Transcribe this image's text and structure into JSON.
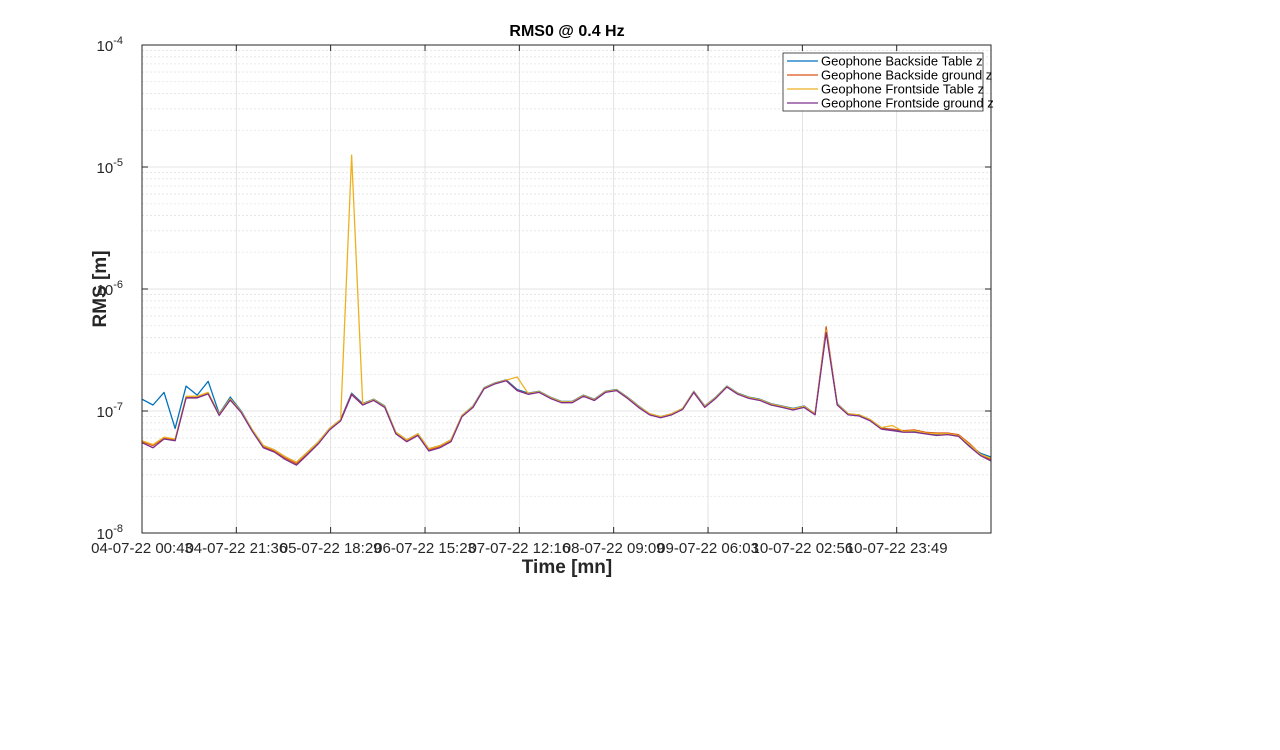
{
  "chart_data": {
    "type": "line",
    "title": "RMS0 @ 0.4 Hz",
    "xlabel": "Time [mn]",
    "ylabel": "RMS [m]",
    "yscale": "log",
    "ylim": [
      1e-08,
      0.0001
    ],
    "ytick_values": [
      1e-08,
      1e-07,
      1e-06,
      1e-05,
      0.0001
    ],
    "ytick_labels": [
      {
        "base": "10",
        "exp": "-8"
      },
      {
        "base": "10",
        "exp": "-7"
      },
      {
        "base": "10",
        "exp": "-6"
      },
      {
        "base": "10",
        "exp": "-5"
      },
      {
        "base": "10",
        "exp": "-4"
      }
    ],
    "xlim": [
      "04-07-22 00:43",
      "11-07-22 20:42"
    ],
    "xtick_values": [
      "04-07-22 00:43",
      "04-07-22 21:36",
      "05-07-22 18:29",
      "06-07-22 15:23",
      "07-07-22 12:16",
      "08-07-22 09:09",
      "09-07-22 06:03",
      "10-07-22 02:56",
      "10-07-22 23:49"
    ],
    "xtick_labels": [
      "04-07-22 00:43",
      "04-07-22 21:36",
      "05-07-22 18:29",
      "06-07-22 15:23",
      "07-07-22 12:16",
      "08-07-22 09:09",
      "09-07-22 06:03",
      "10-07-22 02:56",
      "10-07-22 23:49"
    ],
    "grid": true,
    "minor_grid_y": true,
    "legend_position": "top-right",
    "x": [
      "04-07-22 00:43",
      "04-07-22 03:09",
      "04-07-22 05:36",
      "04-07-22 08:03",
      "04-07-22 10:29",
      "04-07-22 12:56",
      "04-07-22 15:22",
      "04-07-22 17:49",
      "04-07-22 20:16",
      "04-07-22 22:42",
      "05-07-22 01:09",
      "05-07-22 03:35",
      "05-07-22 06:02",
      "05-07-22 08:29",
      "05-07-22 10:55",
      "05-07-22 13:22",
      "05-07-22 15:48",
      "05-07-22 18:15",
      "05-07-22 20:42",
      "05-07-22 23:08",
      "06-07-22 01:35",
      "06-07-22 04:01",
      "06-07-22 06:28",
      "06-07-22 08:55",
      "06-07-22 11:21",
      "06-07-22 13:48",
      "06-07-22 16:14",
      "06-07-22 18:41",
      "06-07-22 21:08",
      "06-07-22 23:34",
      "07-07-22 02:01",
      "07-07-22 04:27",
      "07-07-22 06:54",
      "07-07-22 09:21",
      "07-07-22 11:47",
      "07-07-22 14:14",
      "07-07-22 16:40",
      "07-07-22 19:07",
      "07-07-22 21:34",
      "08-07-22 00:00",
      "08-07-22 02:27",
      "08-07-22 04:53",
      "08-07-22 07:20",
      "08-07-22 09:47",
      "08-07-22 12:13",
      "08-07-22 14:40",
      "08-07-22 17:06",
      "08-07-22 19:33",
      "08-07-22 22:00",
      "09-07-22 00:26",
      "09-07-22 02:53",
      "09-07-22 05:19",
      "09-07-22 07:46",
      "09-07-22 10:13",
      "09-07-22 12:39",
      "09-07-22 15:06",
      "09-07-22 17:32",
      "09-07-22 19:59",
      "09-07-22 22:26",
      "10-07-22 00:52",
      "10-07-22 03:19",
      "10-07-22 05:45",
      "10-07-22 08:12",
      "10-07-22 10:39",
      "10-07-22 13:05",
      "10-07-22 15:32",
      "10-07-22 17:58",
      "10-07-22 20:25",
      "10-07-22 22:52",
      "11-07-22 01:18",
      "11-07-22 03:45",
      "11-07-22 06:11",
      "11-07-22 08:38",
      "11-07-22 11:05",
      "11-07-22 13:31",
      "11-07-22 15:58",
      "11-07-22 18:24",
      "11-07-22 20:42"
    ],
    "series": [
      {
        "name": "Geophone Backside Table z",
        "color": "#0072BD",
        "values": [
          1.25e-07,
          1.12e-07,
          1.42e-07,
          7.2e-08,
          1.6e-07,
          1.35e-07,
          1.75e-07,
          9.5e-08,
          1.3e-07,
          1e-07,
          7e-08,
          5.2e-08,
          4.8e-08,
          4.2e-08,
          3.8e-08,
          4.6e-08,
          5.6e-08,
          7.2e-08,
          8.5e-08,
          1.4e-07,
          1.15e-07,
          1.25e-07,
          1.1e-07,
          6.7e-08,
          5.8e-08,
          6.5e-08,
          4.9e-08,
          5.2e-08,
          5.8e-08,
          9.2e-08,
          1.1e-07,
          1.55e-07,
          1.7e-07,
          1.8e-07,
          1.5e-07,
          1.4e-07,
          1.45e-07,
          1.3e-07,
          1.2e-07,
          1.2e-07,
          1.35e-07,
          1.25e-07,
          1.45e-07,
          1.5e-07,
          1.3e-07,
          1.1e-07,
          9.5e-08,
          9e-08,
          9.5e-08,
          1.05e-07,
          1.45e-07,
          1.1e-07,
          1.3e-07,
          1.6e-07,
          1.4e-07,
          1.3e-07,
          1.25e-07,
          1.15e-07,
          1.1e-07,
          1.05e-07,
          1.1e-07,
          9.5e-08,
          4.6e-07,
          1.15e-07,
          9.5e-08,
          9.3e-08,
          8.5e-08,
          7.3e-08,
          7e-08,
          6.8e-08,
          6.8e-08,
          6.6e-08,
          6.4e-08,
          6.5e-08,
          6.3e-08,
          5.2e-08,
          4.5e-08,
          4.2e-08
        ]
      },
      {
        "name": "Geophone Backside ground z",
        "color": "#D95319",
        "values": [
          5.6e-08,
          5.2e-08,
          6e-08,
          5.8e-08,
          1.3e-07,
          1.3e-07,
          1.4e-07,
          9.3e-08,
          1.25e-07,
          9.8e-08,
          6.9e-08,
          5.1e-08,
          4.7e-08,
          4.1e-08,
          3.7e-08,
          4.5e-08,
          5.5e-08,
          7.1e-08,
          8.4e-08,
          1.38e-07,
          1.13e-07,
          1.23e-07,
          1.08e-07,
          6.6e-08,
          5.7e-08,
          6.4e-08,
          4.8e-08,
          5.1e-08,
          5.7e-08,
          9.1e-08,
          1.08e-07,
          1.53e-07,
          1.68e-07,
          1.78e-07,
          1.48e-07,
          1.38e-07,
          1.43e-07,
          1.28e-07,
          1.18e-07,
          1.18e-07,
          1.33e-07,
          1.23e-07,
          1.43e-07,
          1.48e-07,
          1.28e-07,
          1.08e-07,
          9.4e-08,
          8.9e-08,
          9.4e-08,
          1.04e-07,
          1.43e-07,
          1.08e-07,
          1.28e-07,
          1.58e-07,
          1.38e-07,
          1.28e-07,
          1.23e-07,
          1.13e-07,
          1.08e-07,
          1.03e-07,
          1.08e-07,
          9.4e-08,
          4.9e-07,
          1.13e-07,
          9.4e-08,
          9.2e-08,
          8.4e-08,
          7.2e-08,
          7.1e-08,
          6.9e-08,
          7e-08,
          6.7e-08,
          6.6e-08,
          6.6e-08,
          6.4e-08,
          5.4e-08,
          4.4e-08,
          4e-08
        ]
      },
      {
        "name": "Geophone Frontside Table z",
        "color": "#EDB120",
        "values": [
          5.7e-08,
          5.3e-08,
          6.1e-08,
          5.9e-08,
          1.32e-07,
          1.32e-07,
          1.42e-07,
          9.4e-08,
          1.26e-07,
          9.9e-08,
          7e-08,
          5.2e-08,
          4.8e-08,
          4.2e-08,
          3.8e-08,
          4.6e-08,
          5.6e-08,
          7.2e-08,
          8.5e-08,
          1.25e-05,
          1.14e-07,
          1.24e-07,
          1.09e-07,
          6.7e-08,
          5.8e-08,
          6.5e-08,
          4.9e-08,
          5.2e-08,
          5.8e-08,
          9.2e-08,
          1.09e-07,
          1.54e-07,
          1.69e-07,
          1.79e-07,
          1.9e-07,
          1.39e-07,
          1.44e-07,
          1.29e-07,
          1.19e-07,
          1.19e-07,
          1.34e-07,
          1.24e-07,
          1.44e-07,
          1.49e-07,
          1.29e-07,
          1.09e-07,
          9.5e-08,
          9e-08,
          9.5e-08,
          1.05e-07,
          1.44e-07,
          1.09e-07,
          1.29e-07,
          1.59e-07,
          1.39e-07,
          1.29e-07,
          1.24e-07,
          1.14e-07,
          1.09e-07,
          1.04e-07,
          1.09e-07,
          9.5e-08,
          4.6e-07,
          1.14e-07,
          9.5e-08,
          9.3e-08,
          8.5e-08,
          7.3e-08,
          7.6e-08,
          6.8e-08,
          6.9e-08,
          6.6e-08,
          6.5e-08,
          6.5e-08,
          6.3e-08,
          5.3e-08,
          4.4e-08,
          4.1e-08
        ]
      },
      {
        "name": "Geophone Frontside ground z",
        "color": "#7E2F8E",
        "values": [
          5.5e-08,
          5e-08,
          5.9e-08,
          5.7e-08,
          1.28e-07,
          1.28e-07,
          1.38e-07,
          9.2e-08,
          1.23e-07,
          9.7e-08,
          6.8e-08,
          5e-08,
          4.6e-08,
          4e-08,
          3.6e-08,
          4.4e-08,
          5.4e-08,
          7e-08,
          8.3e-08,
          1.36e-07,
          1.12e-07,
          1.22e-07,
          1.07e-07,
          6.5e-08,
          5.6e-08,
          6.3e-08,
          4.7e-08,
          5e-08,
          5.6e-08,
          9e-08,
          1.07e-07,
          1.52e-07,
          1.67e-07,
          1.77e-07,
          1.47e-07,
          1.37e-07,
          1.42e-07,
          1.27e-07,
          1.17e-07,
          1.17e-07,
          1.32e-07,
          1.22e-07,
          1.42e-07,
          1.47e-07,
          1.27e-07,
          1.07e-07,
          9.3e-08,
          8.8e-08,
          9.3e-08,
          1.03e-07,
          1.42e-07,
          1.07e-07,
          1.27e-07,
          1.57e-07,
          1.37e-07,
          1.27e-07,
          1.22e-07,
          1.12e-07,
          1.07e-07,
          1.02e-07,
          1.07e-07,
          9.3e-08,
          4.4e-07,
          1.12e-07,
          9.3e-08,
          9.1e-08,
          8.3e-08,
          7.1e-08,
          6.9e-08,
          6.7e-08,
          6.7e-08,
          6.5e-08,
          6.3e-08,
          6.4e-08,
          6.2e-08,
          5.1e-08,
          4.3e-08,
          3.9e-08
        ]
      }
    ]
  }
}
